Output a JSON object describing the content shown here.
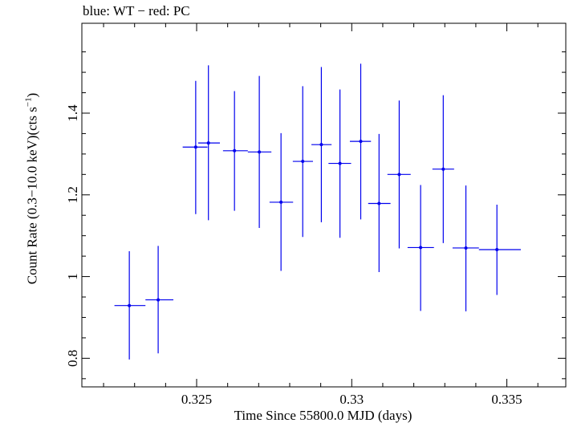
{
  "chart_data": {
    "type": "scatter",
    "title": "blue: WT − red: PC",
    "xlabel": "Time Since 55800.0 MJD (days)",
    "ylabel_main": "Count Rate (0.3−10.0 keV)(cts s",
    "ylabel_sup": "−1",
    "ylabel_end": ")",
    "xlim": [
      0.3213,
      0.3369
    ],
    "ylim": [
      0.73,
      1.62
    ],
    "xticks": [
      {
        "value": 0.325,
        "label": "0.325"
      },
      {
        "value": 0.33,
        "label": "0.33"
      },
      {
        "value": 0.335,
        "label": "0.335"
      }
    ],
    "yticks": [
      {
        "value": 0.8,
        "label": "0.8"
      },
      {
        "value": 1.0,
        "label": "1"
      },
      {
        "value": 1.2,
        "label": "1.2"
      },
      {
        "value": 1.4,
        "label": "1.4"
      }
    ],
    "series": [
      {
        "color": "#0000ee",
        "points": [
          {
            "x": 0.32283,
            "y": 0.929,
            "xlo": 0.32235,
            "xhi": 0.32335,
            "ylo": 0.797,
            "yhi": 1.062
          },
          {
            "x": 0.32376,
            "y": 0.943,
            "xlo": 0.32335,
            "xhi": 0.32425,
            "ylo": 0.812,
            "yhi": 1.075
          },
          {
            "x": 0.32497,
            "y": 1.317,
            "xlo": 0.32455,
            "xhi": 0.32535,
            "ylo": 1.153,
            "yhi": 1.479
          },
          {
            "x": 0.32538,
            "y": 1.327,
            "xlo": 0.32505,
            "xhi": 0.32575,
            "ylo": 1.138,
            "yhi": 1.517
          },
          {
            "x": 0.32622,
            "y": 1.308,
            "xlo": 0.32585,
            "xhi": 0.32665,
            "ylo": 1.161,
            "yhi": 1.454
          },
          {
            "x": 0.32702,
            "y": 1.305,
            "xlo": 0.32665,
            "xhi": 0.32741,
            "ylo": 1.119,
            "yhi": 1.491
          },
          {
            "x": 0.32772,
            "y": 1.182,
            "xlo": 0.32735,
            "xhi": 0.32811,
            "ylo": 1.014,
            "yhi": 1.351
          },
          {
            "x": 0.32842,
            "y": 1.282,
            "xlo": 0.3281,
            "xhi": 0.32875,
            "ylo": 1.097,
            "yhi": 1.466
          },
          {
            "x": 0.32902,
            "y": 1.323,
            "xlo": 0.3287,
            "xhi": 0.32935,
            "ylo": 1.133,
            "yhi": 1.513
          },
          {
            "x": 0.32962,
            "y": 1.277,
            "xlo": 0.32925,
            "xhi": 0.32998,
            "ylo": 1.095,
            "yhi": 1.458
          },
          {
            "x": 0.33029,
            "y": 1.331,
            "xlo": 0.32994,
            "xhi": 0.33062,
            "ylo": 1.14,
            "yhi": 1.521
          },
          {
            "x": 0.33088,
            "y": 1.179,
            "xlo": 0.33053,
            "xhi": 0.33125,
            "ylo": 1.011,
            "yhi": 1.349
          },
          {
            "x": 0.33153,
            "y": 1.25,
            "xlo": 0.33115,
            "xhi": 0.3319,
            "ylo": 1.069,
            "yhi": 1.431
          },
          {
            "x": 0.33222,
            "y": 1.071,
            "xlo": 0.3318,
            "xhi": 0.33265,
            "ylo": 0.916,
            "yhi": 1.224
          },
          {
            "x": 0.33295,
            "y": 1.263,
            "xlo": 0.3326,
            "xhi": 0.3333,
            "ylo": 1.082,
            "yhi": 1.444
          },
          {
            "x": 0.33368,
            "y": 1.07,
            "xlo": 0.33325,
            "xhi": 0.3341,
            "ylo": 0.915,
            "yhi": 1.223
          },
          {
            "x": 0.33468,
            "y": 1.066,
            "xlo": 0.3341,
            "xhi": 0.33545,
            "ylo": 0.955,
            "yhi": 1.176
          }
        ]
      }
    ],
    "grid": false,
    "legend": "none"
  }
}
